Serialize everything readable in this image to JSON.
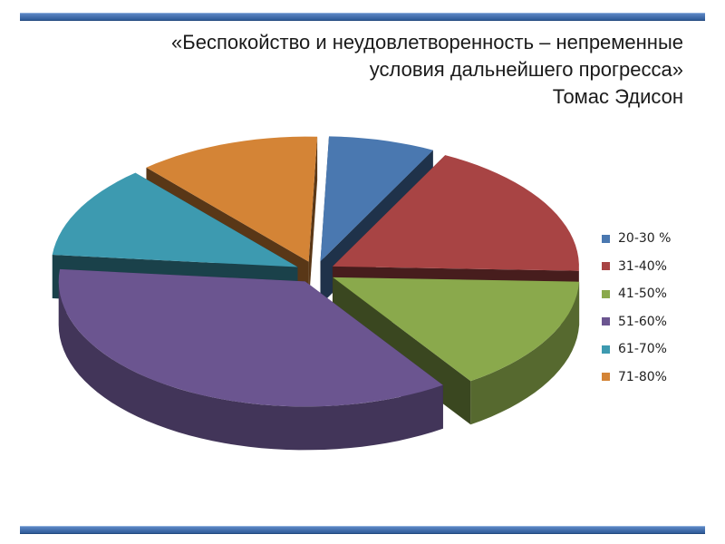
{
  "quote": {
    "line1": "«Беспокойство и неудовлетворенность – непременные",
    "line2": "условия дальнейшего прогресса»",
    "author": "Томас Эдисон"
  },
  "chart_data": {
    "type": "pie",
    "title": "",
    "style": "3d-exploded",
    "legend_position": "right",
    "categories": [
      "20-30 %",
      "31-40%",
      "41-50%",
      "51-60%",
      "61-70%",
      "71-80%"
    ],
    "values": [
      7,
      18,
      15,
      36,
      12,
      12
    ],
    "colors": [
      "#4a78b0",
      "#a84444",
      "#8aa94c",
      "#6b5590",
      "#3d9ab0",
      "#d48436"
    ]
  }
}
